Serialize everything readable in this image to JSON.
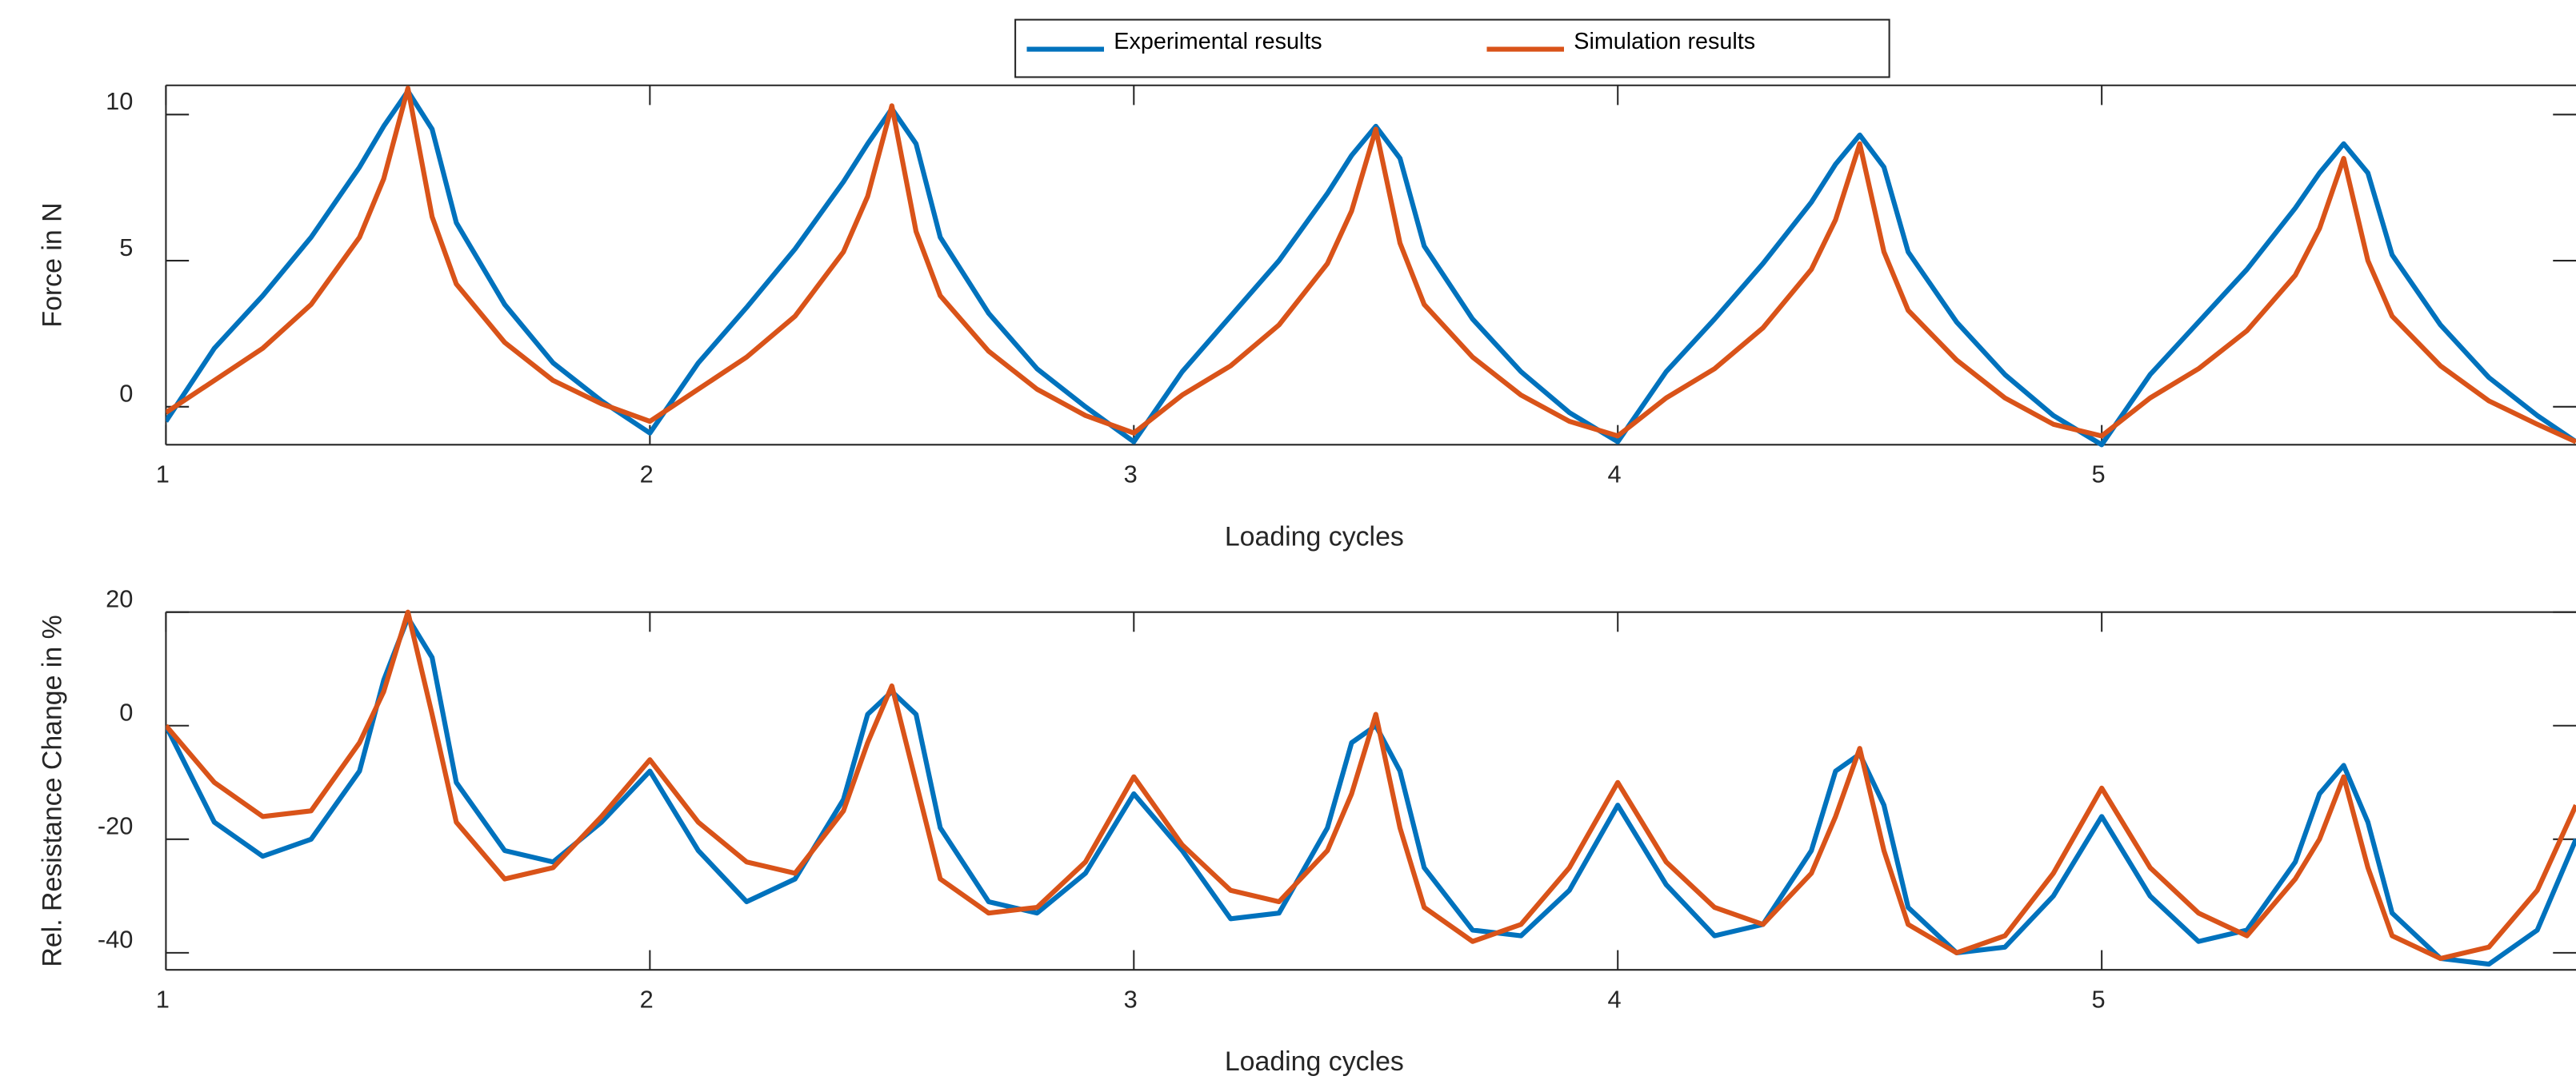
{
  "chart_data": [
    {
      "type": "line",
      "xlabel": "Loading cycles",
      "ylabel": "Force in N",
      "legend": "top",
      "x": [
        1,
        1.1,
        1.2,
        1.3,
        1.4,
        1.45,
        1.5,
        1.55,
        1.6,
        1.7,
        1.8,
        1.9,
        2,
        2.1,
        2.2,
        2.3,
        2.4,
        2.45,
        2.5,
        2.55,
        2.6,
        2.7,
        2.8,
        2.9,
        3,
        3.1,
        3.2,
        3.3,
        3.4,
        3.45,
        3.5,
        3.55,
        3.6,
        3.7,
        3.8,
        3.9,
        4,
        4.1,
        4.2,
        4.3,
        4.4,
        4.45,
        4.5,
        4.55,
        4.6,
        4.7,
        4.8,
        4.9,
        5,
        5.1,
        5.2,
        5.3,
        5.4,
        5.45,
        5.5,
        5.55,
        5.6,
        5.7,
        5.8,
        5.9,
        5.98
      ],
      "xlim": [
        1,
        5.98
      ],
      "xticks": [
        1,
        2,
        3,
        4,
        5
      ],
      "ylim": [
        -1.3,
        11
      ],
      "yticks": [
        0,
        5,
        10
      ],
      "series": [
        {
          "name": "Experimental results",
          "color": "#0072BD",
          "values": [
            -0.5,
            2,
            3.8,
            5.8,
            8.2,
            9.6,
            10.8,
            9.5,
            6.3,
            3.5,
            1.5,
            0.2,
            -0.9,
            1.5,
            3.4,
            5.4,
            7.7,
            9.0,
            10.2,
            9.0,
            5.8,
            3.2,
            1.3,
            0.0,
            -1.2,
            1.2,
            3.1,
            5.0,
            7.3,
            8.6,
            9.6,
            8.5,
            5.5,
            3.0,
            1.2,
            -0.2,
            -1.2,
            1.2,
            3.0,
            4.9,
            7.0,
            8.3,
            9.3,
            8.2,
            5.3,
            2.9,
            1.1,
            -0.3,
            -1.3,
            1.1,
            2.9,
            4.7,
            6.8,
            8.0,
            9.0,
            8.0,
            5.2,
            2.8,
            1.0,
            -0.3,
            -1.2
          ]
        },
        {
          "name": "Simulation results",
          "color": "#D95319",
          "values": [
            -0.2,
            0.9,
            2.0,
            3.5,
            5.8,
            7.8,
            10.9,
            6.5,
            4.2,
            2.2,
            0.9,
            0.1,
            -0.5,
            0.6,
            1.7,
            3.1,
            5.3,
            7.2,
            10.3,
            6.0,
            3.8,
            1.9,
            0.6,
            -0.3,
            -0.9,
            0.4,
            1.4,
            2.8,
            4.9,
            6.7,
            9.5,
            5.6,
            3.5,
            1.7,
            0.4,
            -0.5,
            -1.0,
            0.3,
            1.3,
            2.7,
            4.7,
            6.4,
            9.0,
            5.3,
            3.3,
            1.6,
            0.3,
            -0.6,
            -1.0,
            0.3,
            1.3,
            2.6,
            4.5,
            6.1,
            8.5,
            5.0,
            3.1,
            1.4,
            0.2,
            -0.6,
            -1.2
          ]
        }
      ]
    },
    {
      "type": "line",
      "xlabel": "Loading cycles",
      "ylabel": "Rel. Resistance Change in %",
      "x": [
        1,
        1.1,
        1.2,
        1.3,
        1.4,
        1.45,
        1.5,
        1.55,
        1.6,
        1.7,
        1.8,
        1.9,
        2,
        2.1,
        2.2,
        2.3,
        2.4,
        2.45,
        2.5,
        2.55,
        2.6,
        2.7,
        2.8,
        2.9,
        3,
        3.1,
        3.2,
        3.3,
        3.4,
        3.45,
        3.5,
        3.55,
        3.6,
        3.7,
        3.8,
        3.9,
        4,
        4.1,
        4.2,
        4.3,
        4.4,
        4.45,
        4.5,
        4.55,
        4.6,
        4.7,
        4.8,
        4.9,
        5,
        5.1,
        5.2,
        5.3,
        5.4,
        5.45,
        5.5,
        5.55,
        5.6,
        5.7,
        5.8,
        5.9,
        5.98
      ],
      "xlim": [
        1,
        5.98
      ],
      "xticks": [
        1,
        2,
        3,
        4,
        5
      ],
      "ylim": [
        -43,
        20
      ],
      "yticks": [
        -40,
        -20,
        0,
        20
      ],
      "series": [
        {
          "name": "Experimental results",
          "color": "#0072BD",
          "values": [
            0,
            -17,
            -23,
            -20,
            -8,
            8,
            19,
            12,
            -10,
            -22,
            -24,
            -17,
            -8,
            -22,
            -31,
            -27,
            -13,
            2,
            6,
            2,
            -18,
            -31,
            -33,
            -26,
            -12,
            -22,
            -34,
            -33,
            -18,
            -3,
            0,
            -8,
            -25,
            -36,
            -37,
            -29,
            -14,
            -28,
            -37,
            -35,
            -22,
            -8,
            -5,
            -14,
            -32,
            -40,
            -39,
            -30,
            -16,
            -30,
            -38,
            -36,
            -24,
            -12,
            -7,
            -17,
            -33,
            -41,
            -42,
            -36,
            -20
          ]
        },
        {
          "name": "Simulation results",
          "color": "#D95319",
          "values": [
            0,
            -10,
            -16,
            -15,
            -3,
            6,
            20,
            2,
            -17,
            -27,
            -25,
            -16,
            -6,
            -17,
            -24,
            -26,
            -15,
            -3,
            7,
            -10,
            -27,
            -33,
            -32,
            -24,
            -9,
            -21,
            -29,
            -31,
            -22,
            -12,
            2,
            -18,
            -32,
            -38,
            -35,
            -25,
            -10,
            -24,
            -32,
            -35,
            -26,
            -16,
            -4,
            -22,
            -35,
            -40,
            -37,
            -26,
            -11,
            -25,
            -33,
            -37,
            -27,
            -20,
            -9,
            -25,
            -37,
            -41,
            -39,
            -29,
            -14
          ]
        }
      ]
    }
  ]
}
